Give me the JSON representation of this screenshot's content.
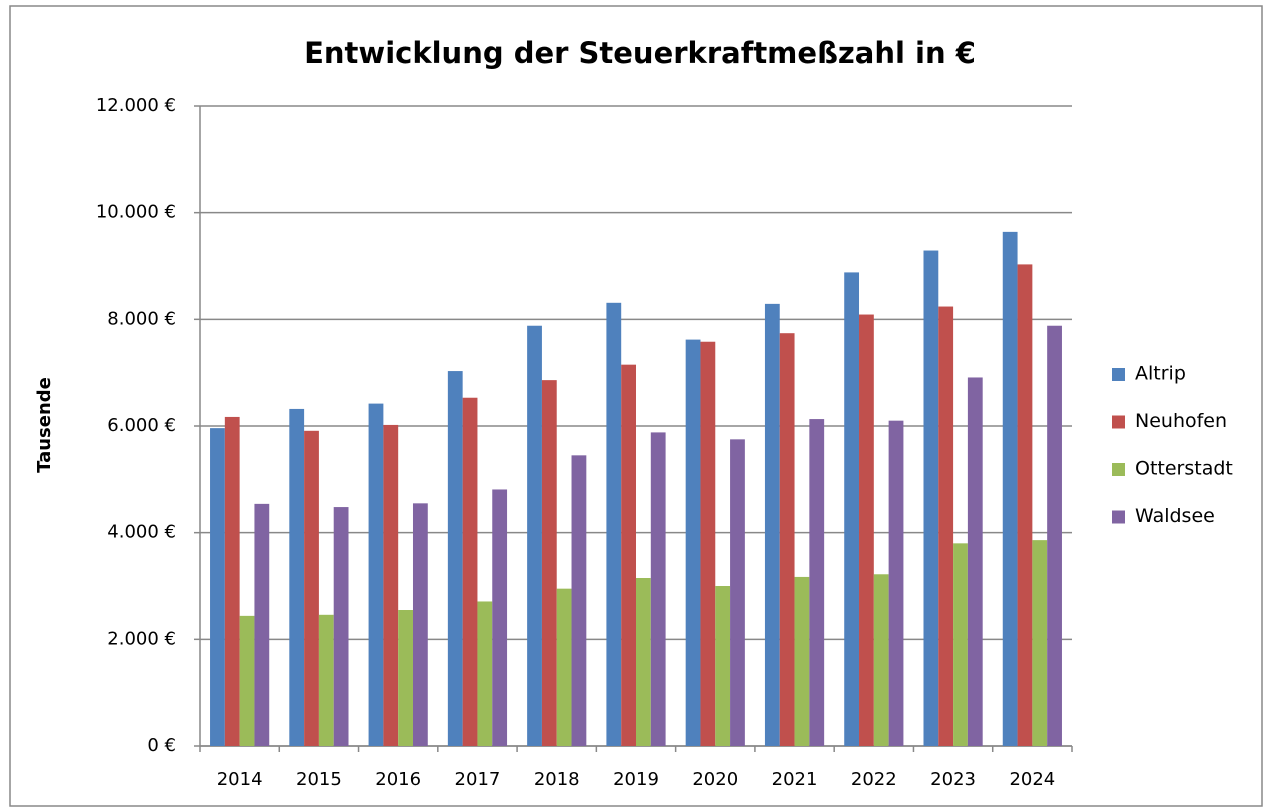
{
  "chart_data": {
    "type": "bar",
    "title": "Entwicklung der Steuerkraftmeßzahl in €",
    "y_label": "Tausende",
    "categories": [
      "2014",
      "2015",
      "2016",
      "2017",
      "2018",
      "2019",
      "2020",
      "2021",
      "2022",
      "2023",
      "2024"
    ],
    "series": [
      {
        "name": "Altrip",
        "color": "#4f81bd",
        "values": [
          5960,
          6320,
          6420,
          7030,
          7880,
          8310,
          7620,
          8290,
          8880,
          9290,
          9640
        ]
      },
      {
        "name": "Neuhofen",
        "color": "#c0504d",
        "values": [
          6170,
          5910,
          6020,
          6530,
          6860,
          7150,
          7580,
          7740,
          8090,
          8240,
          9030
        ]
      },
      {
        "name": "Otterstadt",
        "color": "#9bbb59",
        "values": [
          2440,
          2460,
          2550,
          2710,
          2950,
          3150,
          3000,
          3170,
          3220,
          3800,
          3860
        ]
      },
      {
        "name": "Waldsee",
        "color": "#8064a2",
        "values": [
          4540,
          4480,
          4550,
          4810,
          5450,
          5880,
          5750,
          6130,
          6100,
          6910,
          7880
        ]
      }
    ],
    "ylim": [
      0,
      12000
    ],
    "yticks": [
      {
        "value": 0,
        "label": "0 €"
      },
      {
        "value": 2000,
        "label": "2.000 €"
      },
      {
        "value": 4000,
        "label": "4.000 €"
      },
      {
        "value": 6000,
        "label": "6.000 €"
      },
      {
        "value": 8000,
        "label": "8.000 €"
      },
      {
        "value": 10000,
        "label": "10.000 €"
      },
      {
        "value": 12000,
        "label": "12.000 €"
      }
    ],
    "grid": true,
    "legend": "right"
  }
}
